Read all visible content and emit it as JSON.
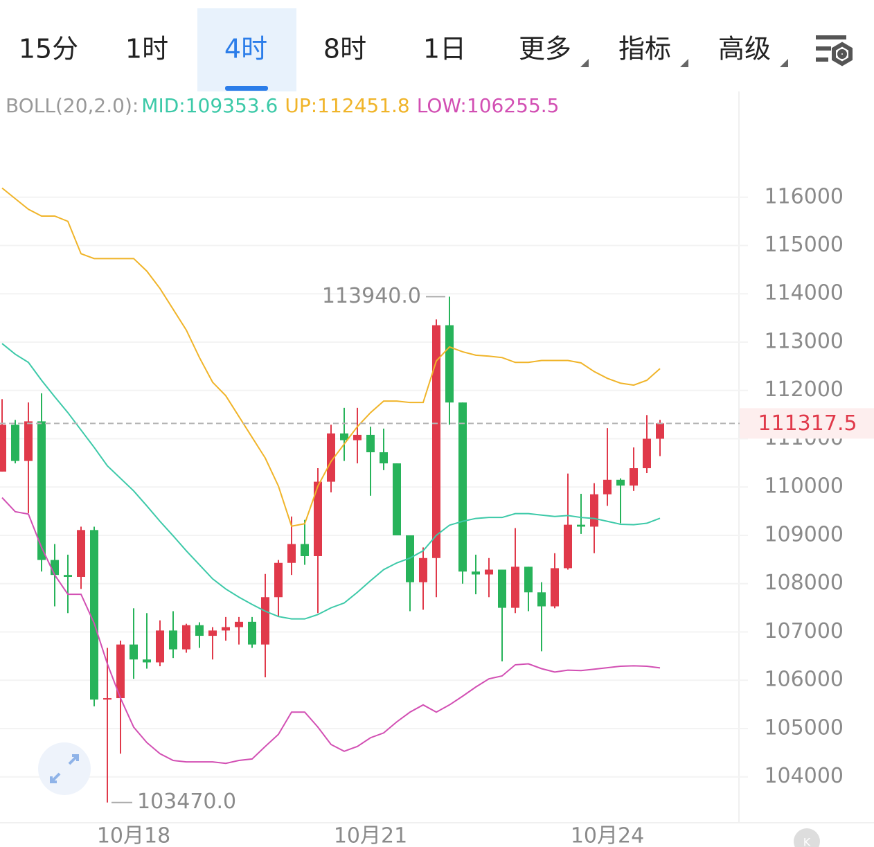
{
  "tabs": [
    "15分",
    "1时",
    "4时",
    "8时",
    "1日",
    "更多",
    "指标",
    "高级"
  ],
  "selected_tab": 2,
  "chart_data": {
    "type": "candlestick",
    "indicator": "BOLL(20,2.0):",
    "up_color": "#e0394a",
    "down_color": "#27b35a",
    "categories": [
      null,
      null,
      null,
      null,
      null,
      null,
      null,
      null,
      null,
      null,
      "10月18",
      null,
      null,
      null,
      null,
      null,
      null,
      null,
      null,
      null,
      null,
      null,
      null,
      null,
      null,
      null,
      null,
      null,
      "10月21",
      null,
      null,
      null,
      null,
      null,
      null,
      null,
      null,
      null,
      null,
      null,
      null,
      null,
      null,
      null,
      null,
      null,
      "10月24",
      null,
      null,
      null,
      null
    ],
    "open": [
      110320,
      111290,
      110540,
      111360,
      108490,
      108180,
      108140,
      109110,
      105600,
      105630,
      106740,
      106430,
      106370,
      107030,
      106640,
      107140,
      106920,
      107030,
      107100,
      107210,
      106740,
      107720,
      108430,
      108820,
      108570,
      110110,
      111110,
      110970,
      111080,
      110720,
      110490,
      109000,
      108030,
      108530,
      113350,
      111750,
      108250,
      108190,
      108290,
      107500,
      108350,
      107820,
      107530,
      108320,
      109220,
      109180,
      109850,
      110150,
      110030,
      110390,
      111000
    ],
    "high": [
      111820,
      111390,
      111750,
      111940,
      108820,
      108600,
      109180,
      109180,
      106670,
      106820,
      107490,
      107390,
      107240,
      107430,
      107170,
      107200,
      107100,
      107310,
      107310,
      107310,
      108200,
      108490,
      109390,
      109320,
      110390,
      111290,
      111640,
      111640,
      111250,
      111210,
      110490,
      109000,
      108750,
      113470,
      113940,
      111750,
      108600,
      108530,
      108290,
      109150,
      108350,
      108030,
      108630,
      110280,
      109860,
      110080,
      111220,
      110180,
      110820,
      111490,
      111390
    ],
    "low": [
      110320,
      110490,
      109460,
      108250,
      107530,
      107390,
      107890,
      105460,
      103470,
      104480,
      106030,
      106240,
      106290,
      106460,
      106570,
      106670,
      106430,
      106820,
      106740,
      106670,
      106060,
      107310,
      108180,
      108390,
      107390,
      109890,
      110540,
      110490,
      109820,
      110350,
      109000,
      107430,
      107460,
      107720,
      111290,
      108000,
      107780,
      107720,
      106390,
      107390,
      107430,
      106600,
      107490,
      108290,
      109030,
      108630,
      109610,
      109250,
      109920,
      110290,
      110640
    ],
    "close": [
      111290,
      110540,
      111360,
      108490,
      108180,
      108140,
      109110,
      105600,
      105630,
      106740,
      106430,
      106370,
      107030,
      106640,
      107140,
      106920,
      107030,
      107100,
      107210,
      106740,
      107720,
      108430,
      108820,
      108570,
      110110,
      111110,
      110970,
      111080,
      110720,
      110490,
      109000,
      108030,
      108530,
      113350,
      111750,
      108250,
      108190,
      108290,
      107500,
      108350,
      107820,
      107530,
      108320,
      109220,
      109180,
      109850,
      110150,
      110030,
      110390,
      111000,
      111317.5
    ],
    "series": [
      {
        "name": "MID:",
        "color": "#3cc9a8",
        "values": [
          112970,
          112750,
          112580,
          112210,
          111870,
          111540,
          111180,
          110820,
          110440,
          110180,
          109920,
          109610,
          109290,
          108990,
          108680,
          108390,
          108100,
          107890,
          107720,
          107570,
          107430,
          107320,
          107270,
          107270,
          107360,
          107500,
          107600,
          107820,
          108060,
          108290,
          108430,
          108530,
          108680,
          109000,
          109210,
          109290,
          109350,
          109370,
          109370,
          109450,
          109450,
          109420,
          109390,
          109410,
          109370,
          109350,
          109290,
          109230,
          109220,
          109250,
          109353.6
        ]
      },
      {
        "name": "UP:",
        "color": "#f0b429",
        "values": [
          116190,
          115970,
          115750,
          115610,
          115610,
          115500,
          114830,
          114730,
          114730,
          114730,
          114730,
          114470,
          114110,
          113680,
          113250,
          112680,
          112170,
          111890,
          111460,
          111030,
          110600,
          110020,
          109190,
          109240,
          110020,
          110530,
          110890,
          111250,
          111540,
          111780,
          111780,
          111750,
          111750,
          112610,
          112900,
          112800,
          112730,
          112710,
          112680,
          112580,
          112580,
          112620,
          112620,
          112620,
          112570,
          112390,
          112250,
          112150,
          112110,
          112210,
          112451.8
        ]
      },
      {
        "name": "LOW:",
        "color": "#d24fb3",
        "values": [
          109780,
          109490,
          109440,
          108750,
          108180,
          107780,
          107780,
          107180,
          106340,
          105630,
          105030,
          104710,
          104480,
          104340,
          104310,
          104310,
          104310,
          104280,
          104340,
          104370,
          104630,
          104880,
          105340,
          105340,
          105030,
          104670,
          104530,
          104630,
          104810,
          104910,
          105140,
          105340,
          105490,
          105340,
          105490,
          105670,
          105860,
          106030,
          106090,
          106320,
          106340,
          106240,
          106170,
          106210,
          106200,
          106230,
          106260,
          106290,
          106300,
          106290,
          106255.5
        ]
      }
    ],
    "last_price": 111317.5,
    "annotations": [
      {
        "value": 113940,
        "label": "113940.0"
      },
      {
        "value": 103470,
        "label": "103470.0"
      }
    ],
    "ylim": [
      103050,
      118190
    ],
    "yticks": [
      104000,
      105000,
      106000,
      107000,
      108000,
      109000,
      110000,
      111000,
      112000,
      113000,
      114000,
      115000,
      116000
    ],
    "grid": true
  }
}
